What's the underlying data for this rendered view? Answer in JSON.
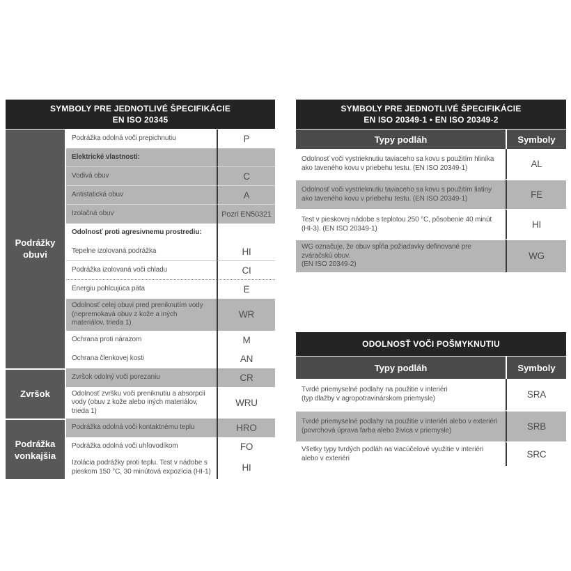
{
  "left_table": {
    "title_line1": "SYMBOLY PRE JEDNOTLIVÉ ŠPECIFIKÁCIE",
    "title_line2": "EN ISO 20345",
    "groups": [
      {
        "label": "Podrážky obuvi"
      },
      {
        "label": "Zvršok"
      },
      {
        "label": "Podrážka vonkajšia"
      }
    ],
    "rows": [
      {
        "desc": "Podrážka odolná voči prepichnutiu",
        "symbol": "P"
      },
      {
        "desc": "Elektrické vlastnosti:",
        "symbol": ""
      },
      {
        "desc": "Vodivá obuv",
        "symbol": "C"
      },
      {
        "desc": "Antistatická obuv",
        "symbol": "A"
      },
      {
        "desc": "Izolačná obuv",
        "symbol": "Pozri EN50321"
      },
      {
        "desc": "Odolnosť proti agresivnemu prostrediu:",
        "symbol": ""
      },
      {
        "desc": "Tepelne izolovaná podrážka",
        "symbol": "HI"
      },
      {
        "desc": "Podrážka izolovaná voči chladu",
        "symbol": "CI"
      },
      {
        "desc": "Energiu pohlcujúca päta",
        "symbol": "E"
      },
      {
        "desc": "Odolnosť celej obuvi pred preniknutím vody (nepremokavá obuv z kože a iných materiálov, trieda 1)",
        "symbol": "WR"
      },
      {
        "desc": "Ochrana proti nárazom",
        "symbol": "M"
      },
      {
        "desc": "Ochrana členkovej kosti",
        "symbol": "AN"
      },
      {
        "desc": "Zvršok odolný voči porezaniu",
        "symbol": "CR"
      },
      {
        "desc": "Odolnosť zvršku voči preniknutiu a absorpcii vody (obuv z kože alebo iných materiálov, trieda 1)",
        "symbol": "WRU"
      },
      {
        "desc": "Podrážka odolná voči kontaktnému teplu",
        "symbol": "HRO"
      },
      {
        "desc": "Podrážka odolná voči uhľovodíkom",
        "symbol": "FO"
      },
      {
        "desc": "Izolácia podrážky proti teplu. Test v nádobe s pieskom 150 °C, 30 minútová expozícia (HI-1)",
        "symbol": "HI"
      }
    ]
  },
  "right_table": {
    "title_line1": "SYMBOLY PRE JEDNOTLIVÉ ŠPECIFIKÁCIE",
    "title_line2": "EN ISO 20349-1 • EN ISO 20349-2",
    "col_type": "Typy podláh",
    "col_symbol": "Symboly",
    "rows": [
      {
        "desc": "Odolnosť voči vystrieknutiu taviaceho sa kovu s použitím hliníka ako taveného kovu v priebehu testu. (EN ISO 20349-1)",
        "symbol": "AL"
      },
      {
        "desc": "Odolnosť voči vystrieknutiu taviaceho sa kovu s použitím liatiny ako taveného kovu v priebehu testu. (EN ISO 20349-1)",
        "symbol": "FE"
      },
      {
        "desc": "Test v pieskovej nádobe s teplotou 250 °C, pôsobenie 40 minút (HI-3). (EN ISO 20349-1)",
        "symbol": "HI"
      },
      {
        "desc": "WG označuje, že obuv spĺňa požiadavky definované pre zváračskú obuv.\n(EN ISO 20349-2)",
        "symbol": "WG"
      }
    ]
  },
  "slip_table": {
    "title": "ODOLNOSŤ VOČI POŠMYKNUTIU",
    "col_type": "Typy podláh",
    "col_symbol": "Symboly",
    "rows": [
      {
        "desc": "Tvrdé priemyselné podlahy na použitie v interiéri\n(typ dlažby v agropotravinárskom priemysle)",
        "symbol": "SRA"
      },
      {
        "desc": "Tvrdé priemyselné podlahy na použitie v interiéri alebo v exteriéri\n(povrchová úprava farba alebo živica v priemysle)",
        "symbol": "SRB"
      },
      {
        "desc": "Všetky typy tvrdých podláh na viacúčelové využitie v interiéri alebo v exteriéri",
        "symbol": "SRC"
      }
    ]
  }
}
